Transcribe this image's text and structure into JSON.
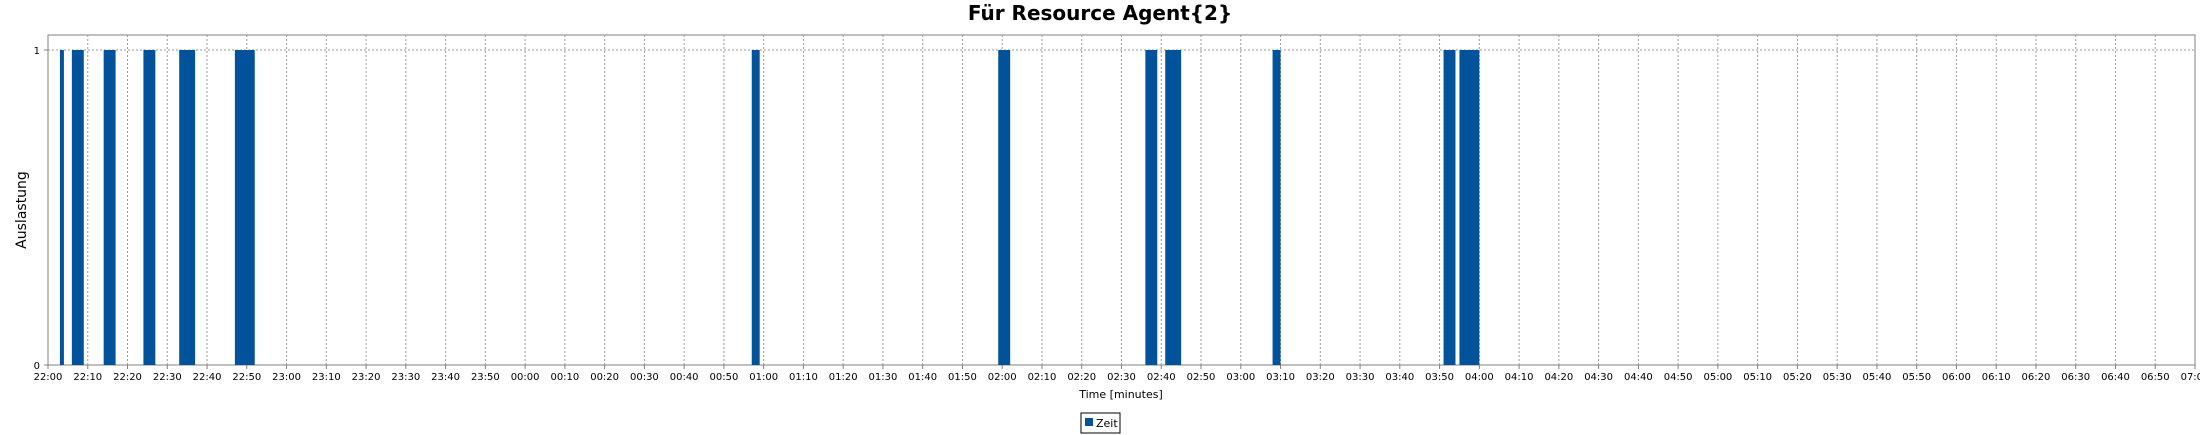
{
  "chart_data": {
    "type": "bar",
    "title": "Für Resource Agent{2}",
    "xlabel": "Time [minutes]",
    "ylabel": "Auslastung",
    "ylim": [
      0,
      1
    ],
    "yticks": [
      "0",
      "1"
    ],
    "grid": true,
    "legend_placement": "bottom-center",
    "colors": {
      "bar": "#00529b",
      "grid": "#9a9a9a",
      "border": "#808080"
    },
    "xlim": [
      "22:00",
      "07:00"
    ],
    "x_tick_labels": [
      "22:00",
      "22:10",
      "22:20",
      "22:30",
      "22:40",
      "22:50",
      "23:00",
      "23:10",
      "23:20",
      "23:30",
      "23:40",
      "23:50",
      "00:00",
      "00:10",
      "00:20",
      "00:30",
      "00:40",
      "00:50",
      "01:00",
      "01:10",
      "01:20",
      "01:30",
      "01:40",
      "01:50",
      "02:00",
      "02:10",
      "02:20",
      "02:30",
      "02:40",
      "02:50",
      "03:00",
      "03:10",
      "03:20",
      "03:30",
      "03:40",
      "03:50",
      "04:00",
      "04:10",
      "04:20",
      "04:30",
      "04:40",
      "04:50",
      "05:00",
      "05:10",
      "05:20",
      "05:30",
      "05:40",
      "05:50",
      "06:00",
      "06:10",
      "06:20",
      "06:30",
      "06:40",
      "06:50",
      "07:00"
    ],
    "series": [
      {
        "name": "Zeit",
        "values": [
          {
            "start": "22:03",
            "end": "22:04",
            "value": 1
          },
          {
            "start": "22:06",
            "end": "22:09",
            "value": 1
          },
          {
            "start": "22:14",
            "end": "22:17",
            "value": 1
          },
          {
            "start": "22:24",
            "end": "22:27",
            "value": 1
          },
          {
            "start": "22:33",
            "end": "22:37",
            "value": 1
          },
          {
            "start": "22:47",
            "end": "22:52",
            "value": 1
          },
          {
            "start": "00:57",
            "end": "00:59",
            "value": 1
          },
          {
            "start": "01:59",
            "end": "02:02",
            "value": 1
          },
          {
            "start": "02:36",
            "end": "02:39",
            "value": 1
          },
          {
            "start": "02:41",
            "end": "02:45",
            "value": 1
          },
          {
            "start": "03:08",
            "end": "03:10",
            "value": 1
          },
          {
            "start": "03:51",
            "end": "03:54",
            "value": 1
          },
          {
            "start": "03:55",
            "end": "04:00",
            "value": 1
          }
        ]
      }
    ]
  }
}
